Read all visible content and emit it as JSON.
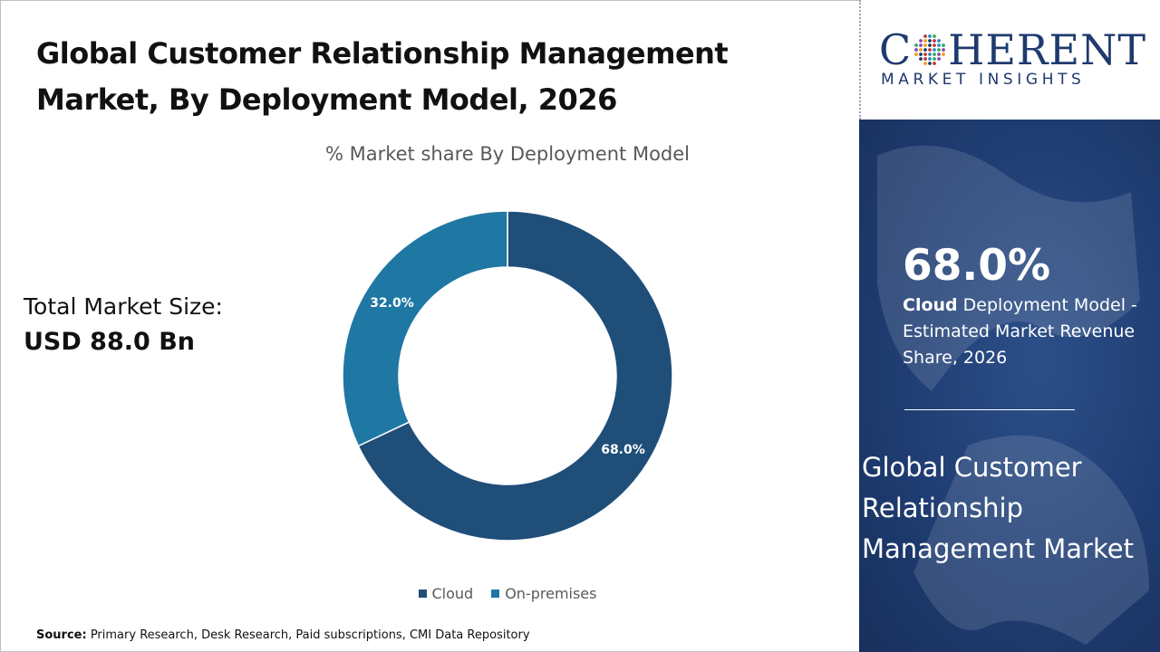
{
  "title": {
    "line1": "Global Customer Relationship Management",
    "line2": "Market, By Deployment Model, 2026"
  },
  "market": {
    "label": "Total Market Size:",
    "value": "USD 88.0 Bn"
  },
  "source": {
    "label": "Source:",
    "text": " Primary Research, Desk Research, Paid subscriptions, CMI Data Repository"
  },
  "logo": {
    "word_left": "C",
    "word_right": "HERENT",
    "subtitle": "MARKET INSIGHTS"
  },
  "highlight": {
    "percent": "68.0%",
    "desc_bold": "Cloud",
    "desc_rest": " Deployment Model - Estimated Market Revenue Share, 2026"
  },
  "side_title": "Global Customer Relationship Management Market",
  "colors": {
    "cloud": "#1f4e79",
    "on_premises": "#1f77a3",
    "panel": "#1f3d72",
    "logo_navy": "#1f3a6e"
  },
  "chart_data": {
    "type": "pie",
    "title": "% Market share By Deployment Model",
    "donut": true,
    "categories": [
      "Cloud",
      "On-premises"
    ],
    "values": [
      68.0,
      32.0
    ],
    "labels": [
      "68.0%",
      "32.0%"
    ],
    "legend_position": "bottom"
  }
}
